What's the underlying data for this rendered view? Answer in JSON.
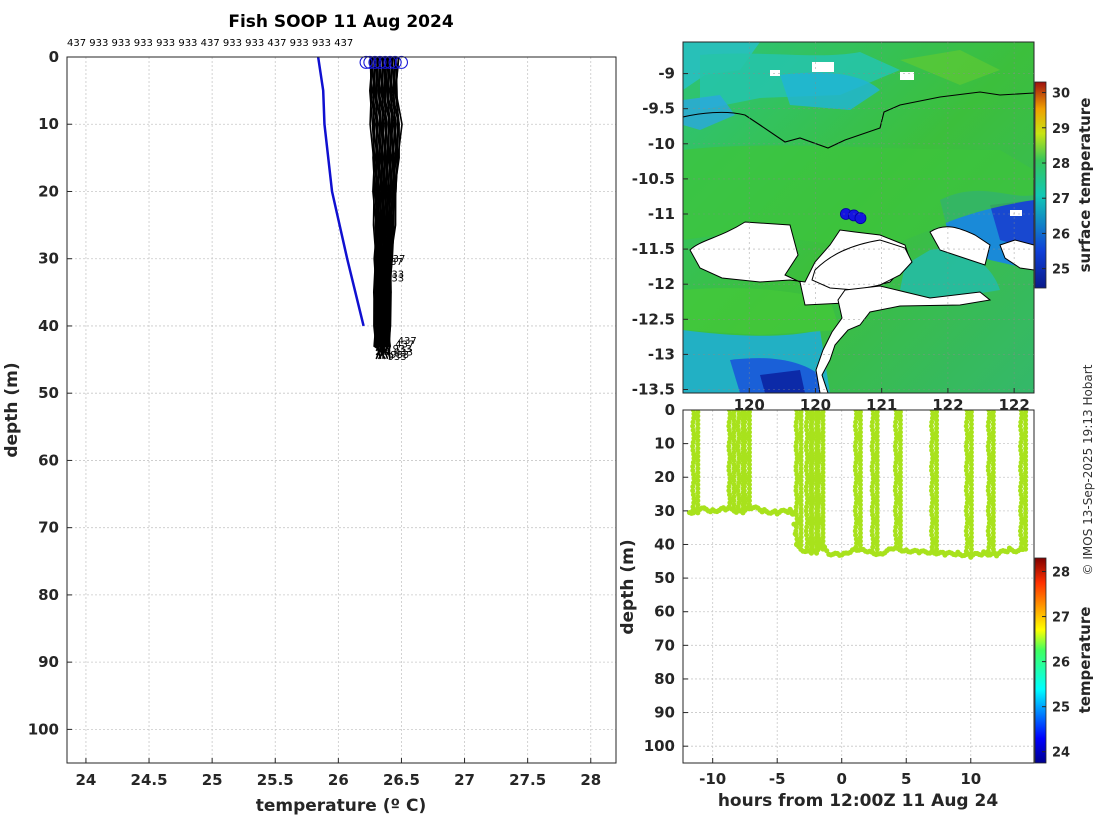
{
  "figure": {
    "title": "Fish SOOP 11 Aug 2024",
    "credit": "© IMOS 13-Sep-2025 19:13 Hobart"
  },
  "chart_data": [
    {
      "id": "profiles",
      "type": "line",
      "title": "Fish SOOP 11 Aug 2024",
      "xlabel": "temperature (º C)",
      "ylabel": "depth (m)",
      "xlim": [
        23.85,
        28.2
      ],
      "ylim": [
        105,
        0
      ],
      "xticks": [
        24,
        24.5,
        25,
        25.5,
        26,
        26.5,
        27,
        27.5,
        28
      ],
      "xtick_labels": [
        "24",
        "24.5",
        "25",
        "25.5",
        "26",
        "26.5",
        "27",
        "27.5",
        "28"
      ],
      "yticks": [
        0,
        10,
        20,
        30,
        40,
        50,
        60,
        70,
        80,
        90,
        100
      ],
      "ytick_labels": [
        "0",
        "10",
        "20",
        "30",
        "40",
        "50",
        "60",
        "70",
        "80",
        "90",
        "100"
      ],
      "grid": true,
      "top_labels": "437 933 933 933 933 933 437 933 933 437 933 933 437",
      "reference_profile": {
        "name": "climatology",
        "color": "#1010d0",
        "temperature": [
          25.84,
          25.88,
          25.89,
          25.95,
          26.07,
          26.2
        ],
        "depth": [
          0,
          5,
          10,
          20,
          30,
          40
        ]
      },
      "profile_band": {
        "color": "#000000",
        "depth": [
          0,
          5,
          10,
          15,
          20,
          25,
          30,
          35,
          40,
          43
        ],
        "min_temperature": [
          26.24,
          26.24,
          26.25,
          26.26,
          26.27,
          26.28,
          26.28,
          26.28,
          26.28,
          26.28
        ],
        "max_temperature": [
          26.5,
          26.49,
          26.52,
          26.5,
          26.48,
          26.46,
          26.44,
          26.43,
          26.42,
          26.42
        ]
      },
      "surface_markers": [
        26.22,
        26.25,
        26.29,
        26.33,
        26.37,
        26.41,
        26.45,
        26.5
      ],
      "bottom_labels": [
        {
          "text": "437",
          "temperature": 26.38,
          "depth": 30.5
        },
        {
          "text": "437",
          "temperature": 26.36,
          "depth": 30.9
        },
        {
          "text": "933",
          "temperature": 26.37,
          "depth": 32.8
        },
        {
          "text": "933",
          "temperature": 26.37,
          "depth": 33.4
        },
        {
          "text": "437",
          "temperature": 26.47,
          "depth": 42.7
        },
        {
          "text": "437",
          "temperature": 26.45,
          "depth": 43.2
        },
        {
          "text": "933",
          "temperature": 26.43,
          "depth": 43.9
        },
        {
          "text": "933",
          "temperature": 26.44,
          "depth": 44.4
        },
        {
          "text": "933",
          "temperature": 26.41,
          "depth": 44.8
        },
        {
          "text": "933",
          "temperature": 26.39,
          "depth": 45.1
        }
      ]
    },
    {
      "id": "map",
      "type": "heatmap",
      "xticks": [
        120,
        120.5,
        121,
        121.5,
        122
      ],
      "xtick_labels": [
        "120",
        "120",
        "121",
        "122",
        "122"
      ],
      "yticks": [
        -9,
        -9.5,
        -10,
        -10.5,
        -11,
        -11.5,
        -12,
        -12.5,
        -13,
        -13.5
      ],
      "ytick_labels": [
        "-9",
        "-9.5",
        "-10",
        "-10.5",
        "-11",
        "-11.5",
        "-12",
        "-12.5",
        "-13",
        "-13.5"
      ],
      "ylim": [
        -13.55,
        -8.55
      ],
      "xlim": [
        119.5,
        122.15
      ],
      "colorbar": {
        "label": "surface temperature",
        "min": 24.45,
        "max": 30.3,
        "ticks": [
          25,
          26,
          27,
          28,
          29,
          30
        ],
        "tick_labels": [
          "25",
          "26",
          "27",
          "28",
          "29",
          "30"
        ]
      },
      "station_positions": [
        {
          "lon": 120.73,
          "lat": -11.0
        },
        {
          "lon": 120.79,
          "lat": -11.02
        },
        {
          "lon": 120.84,
          "lat": -11.06
        }
      ]
    },
    {
      "id": "section",
      "type": "scatter",
      "xlabel": "hours from 12:00Z 11 Aug 24",
      "ylabel": "depth (m)",
      "xlim": [
        -12.3,
        14.9
      ],
      "ylim": [
        105,
        0
      ],
      "xticks": [
        -10,
        -5,
        0,
        5,
        10
      ],
      "xtick_labels": [
        "-10",
        "-5",
        "0",
        "5",
        "10"
      ],
      "yticks": [
        0,
        10,
        20,
        30,
        40,
        50,
        60,
        70,
        80,
        90,
        100
      ],
      "ytick_labels": [
        "0",
        "10",
        "20",
        "30",
        "40",
        "50",
        "60",
        "70",
        "80",
        "90",
        "100"
      ],
      "grid": true,
      "colorbar": {
        "label": "temperature",
        "min": 23.75,
        "max": 28.3,
        "ticks": [
          24,
          25,
          26,
          27,
          28
        ],
        "tick_labels": [
          "24",
          "25",
          "26",
          "27",
          "28"
        ]
      },
      "point_color": "#a8e21c",
      "track": {
        "hours": [
          -11.8,
          -11.0,
          -10.0,
          -9.0,
          -8.0,
          -7.0,
          -6.0,
          -5.0,
          -4.0,
          -3.8,
          -3.5,
          -3.0,
          -2.5,
          -2.0,
          -1.5,
          -1.0,
          0.0,
          1.0,
          2.0,
          3.0,
          4.0,
          5.0,
          6.0,
          7.0,
          8.0,
          9.0,
          10.0,
          11.0,
          12.0,
          13.0,
          14.2
        ],
        "depth": [
          30.5,
          29.5,
          29.8,
          29.5,
          30.0,
          29.0,
          30.0,
          30.5,
          30.0,
          30.5,
          40.5,
          41.5,
          42.5,
          41.5,
          40.5,
          42.5,
          43.5,
          41.0,
          42.5,
          42.5,
          41.5,
          41.5,
          42.5,
          42.0,
          43.0,
          42.5,
          43.5,
          42.5,
          43.0,
          41.5,
          42.0
        ]
      },
      "casts": [
        -11.5,
        -8.7,
        -8.0,
        -7.5,
        -3.5,
        -2.7,
        -2.3,
        -1.8,
        1.1,
        2.4,
        4.2,
        7.0,
        9.7,
        11.4,
        13.9
      ]
    }
  ]
}
